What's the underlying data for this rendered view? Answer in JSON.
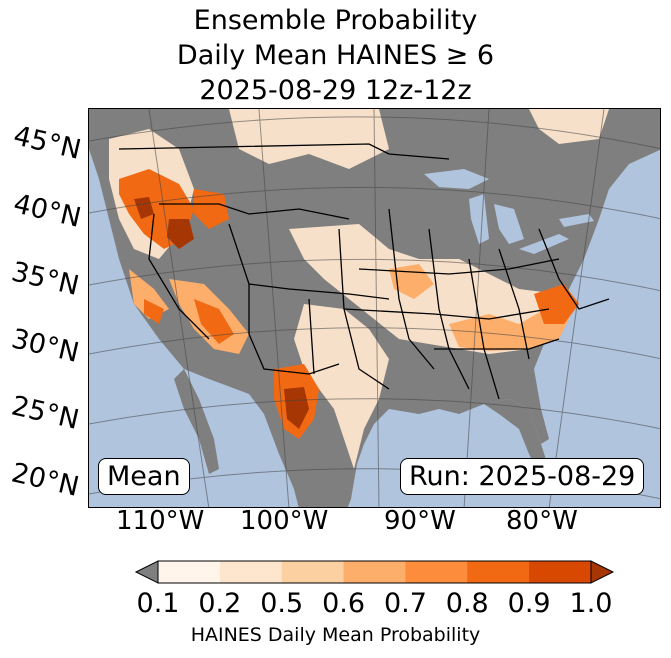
{
  "title": {
    "line1": "Ensemble Probability",
    "line2": "Daily Mean HAINES ≥ 6",
    "line3": "2025-08-29 12z-12z"
  },
  "map": {
    "lat_labels": [
      "45°N",
      "40°N",
      "35°N",
      "30°N",
      "25°N",
      "20°N"
    ],
    "lon_labels": [
      "110°W",
      "100°W",
      "90°W",
      "80°W"
    ],
    "mean_label": "Mean",
    "run_label": "Run: 2025-08-29",
    "colors": {
      "ocean": "#b0c4de",
      "nodata": "#7f7f7f",
      "land_low": "#fff5eb"
    },
    "regions": [
      {
        "name": "pacific-northwest-high",
        "prob": 0.9
      },
      {
        "name": "oregon-california",
        "prob": 0.8
      },
      {
        "name": "southern-california",
        "prob": 0.8
      },
      {
        "name": "arizona",
        "prob": 0.7
      },
      {
        "name": "west-texas",
        "prob": 0.9
      },
      {
        "name": "southeast",
        "prob": 0.7
      },
      {
        "name": "mid-atlantic",
        "prob": 0.8
      },
      {
        "name": "plains",
        "prob": 0.2
      },
      {
        "name": "canada-south",
        "prob": 0.3
      }
    ]
  },
  "colorbar": {
    "label": "HAINES Daily Mean Probability",
    "ticks": [
      "0.1",
      "0.2",
      "0.5",
      "0.6",
      "0.7",
      "0.8",
      "0.9",
      "1.0"
    ],
    "colors": [
      "#fff5eb",
      "#fee6ce",
      "#fdd0a2",
      "#fdae6b",
      "#fd8d3c",
      "#f16913",
      "#d94801",
      "#a63603"
    ],
    "under_color": "#7f7f7f"
  }
}
